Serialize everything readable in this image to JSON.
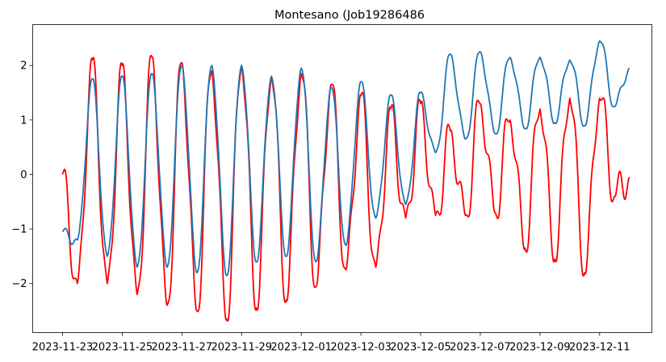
{
  "chart_data": {
    "type": "line",
    "title": "Montesano (Job19286486",
    "xlabel": "",
    "ylabel": "",
    "x_start": "2023-11-23",
    "x_end": "2023-12-12",
    "xlim": [
      "2023-11-22T00:00",
      "2023-12-12T18:00"
    ],
    "ylim": [
      -2.9,
      2.75
    ],
    "x_ticks": [
      "2023-11-23",
      "2023-11-25",
      "2023-11-27",
      "2023-11-29",
      "2023-12-01",
      "2023-12-03",
      "2023-12-05",
      "2023-12-07",
      "2023-12-09",
      "2023-12-11"
    ],
    "y_ticks": [
      -2,
      -1,
      0,
      1,
      2
    ],
    "y_tick_labels": [
      "−2",
      "−1",
      "0",
      "1",
      "2"
    ],
    "grid": false,
    "legend": "none",
    "series": [
      {
        "color": "#ff0000",
        "x": [
          "2023-11-23",
          "2023-11-23T12:00",
          "2023-11-24",
          "2023-11-24T12:00",
          "2023-11-25",
          "2023-11-25T12:00",
          "2023-11-26",
          "2023-11-26T12:00",
          "2023-11-27",
          "2023-11-27T12:00",
          "2023-11-28",
          "2023-11-28T12:00",
          "2023-11-29",
          "2023-11-29T12:00",
          "2023-11-30",
          "2023-11-30T12:00",
          "2023-12-01",
          "2023-12-01T12:00",
          "2023-12-02",
          "2023-12-02T12:00",
          "2023-12-03",
          "2023-12-03T12:00",
          "2023-12-04",
          "2023-12-04T12:00",
          "2023-12-05",
          "2023-12-05T12:00",
          "2023-12-06",
          "2023-12-06T12:00",
          "2023-12-07",
          "2023-12-07T12:00",
          "2023-12-08",
          "2023-12-08T12:00",
          "2023-12-09",
          "2023-12-09T12:00",
          "2023-12-10",
          "2023-12-10T12:00",
          "2023-12-11",
          "2023-12-11T12:00",
          "2023-12-12"
        ],
        "values": [
          0.0,
          -2.0,
          2.1,
          -2.0,
          2.0,
          -2.2,
          2.15,
          -2.4,
          2.05,
          -2.5,
          1.9,
          -2.65,
          2.0,
          -2.45,
          1.8,
          -2.3,
          1.85,
          -2.05,
          1.65,
          -1.75,
          1.45,
          -1.7,
          1.2,
          -0.8,
          1.3,
          -0.75,
          0.8,
          -0.75,
          1.3,
          -0.7,
          1.0,
          -1.35,
          1.2,
          -1.55,
          1.4,
          -1.8,
          1.4,
          -0.4,
          -0.05
        ]
      },
      {
        "color": "#1f77b4",
        "x": [
          "2023-11-23",
          "2023-11-23T12:00",
          "2023-11-24",
          "2023-11-24T12:00",
          "2023-11-25",
          "2023-11-25T12:00",
          "2023-11-26",
          "2023-11-26T12:00",
          "2023-11-27",
          "2023-11-27T12:00",
          "2023-11-28",
          "2023-11-28T12:00",
          "2023-11-29",
          "2023-11-29T12:00",
          "2023-11-30",
          "2023-11-30T12:00",
          "2023-12-01",
          "2023-12-01T12:00",
          "2023-12-02",
          "2023-12-02T12:00",
          "2023-12-03",
          "2023-12-03T12:00",
          "2023-12-04",
          "2023-12-04T12:00",
          "2023-12-05",
          "2023-12-05T12:00",
          "2023-12-06",
          "2023-12-06T12:00",
          "2023-12-07",
          "2023-12-07T12:00",
          "2023-12-08",
          "2023-12-08T12:00",
          "2023-12-09",
          "2023-12-09T12:00",
          "2023-12-10",
          "2023-12-10T12:00",
          "2023-12-11",
          "2023-12-11T12:00",
          "2023-12-12"
        ],
        "values": [
          -1.05,
          -1.2,
          1.75,
          -1.5,
          1.8,
          -1.7,
          1.85,
          -1.7,
          2.0,
          -1.8,
          2.0,
          -1.85,
          2.0,
          -1.6,
          1.8,
          -1.5,
          1.95,
          -1.6,
          1.6,
          -1.3,
          1.7,
          -0.8,
          1.45,
          -0.55,
          1.5,
          0.4,
          2.2,
          0.65,
          2.25,
          0.75,
          2.15,
          0.85,
          2.15,
          0.95,
          2.1,
          0.9,
          2.45,
          1.25,
          1.95
        ]
      }
    ]
  }
}
